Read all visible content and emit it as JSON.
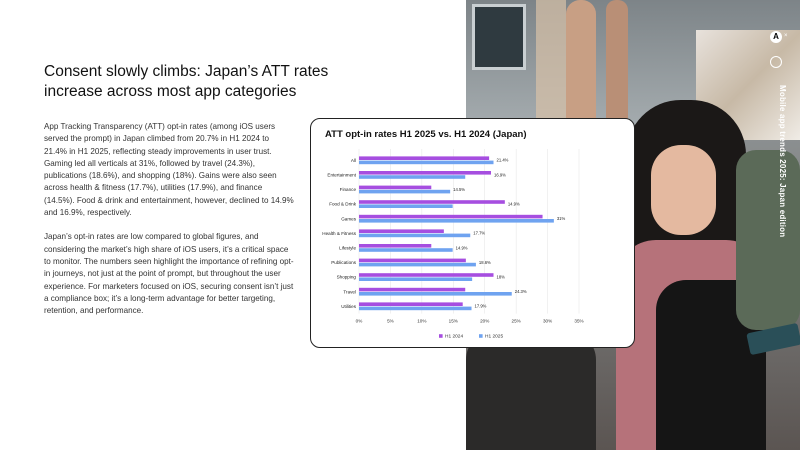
{
  "headline": "Consent slowly climbs: Japan’s ATT rates increase across most app categories",
  "paragraphs": [
    "App Tracking Transparency (ATT) opt-in rates (among iOS users served the prompt) in Japan climbed from 20.7% in H1 2024 to 21.4% in H1 2025, reflecting steady improvements in user trust. Gaming led all verticals at 31%, followed by travel (24.3%), publications (18.6%), and shopping (18%). Gains were also seen across health & fitness (17.7%), utilities (17.9%), and finance (14.5%). Food & drink and entertainment, however, declined to 14.9% and 16.9%, respectively.",
    "Japan’s opt-in rates are low compared to global figures, and considering the market’s high share of iOS users, it’s a critical space to monitor. The numbers seen highlight the importance of refining opt-in journeys, not just at the point of prompt, but throughout the user experience. For marketers focused on iOS, securing consent isn’t just a compliance box; it’s a long-term advantage for better targeting, retention, and performance."
  ],
  "side_title": "Mobile app trends 2025: Japan edition",
  "logo_letter": "A",
  "logo_separator": "×",
  "colors": {
    "h1_2024": "#a64ee0",
    "h1_2025": "#6fa3f0"
  },
  "chart_data": {
    "type": "bar",
    "orientation": "horizontal",
    "title": "ATT opt-in rates H1 2025 vs. H1 2024 (Japan)",
    "categories": [
      "All",
      "Entertainment",
      "Finance",
      "Food & Drink",
      "Games",
      "Health & Fitness",
      "Lifestyle",
      "Publications",
      "Shopping",
      "Travel",
      "Utilities"
    ],
    "series": [
      {
        "name": "H1 2024",
        "values": [
          20.7,
          21.0,
          11.5,
          23.2,
          29.2,
          13.5,
          11.5,
          17.0,
          21.4,
          16.9,
          16.5
        ]
      },
      {
        "name": "H1 2025",
        "values": [
          21.4,
          16.9,
          14.5,
          14.9,
          31.0,
          17.7,
          14.9,
          18.6,
          18.0,
          24.3,
          17.9
        ]
      }
    ],
    "data_labels": [
      "21.4%",
      "16.9%",
      "14.5%",
      "14.9%",
      "31%",
      "17.7%",
      "14.9%",
      "18.6%",
      "18%",
      "24.3%",
      "17.9%"
    ],
    "xlim": [
      0,
      35
    ],
    "x_ticks": [
      "0%",
      "5%",
      "10%",
      "15%",
      "20%",
      "25%",
      "30%",
      "35%"
    ],
    "grid": true,
    "legend_position": "bottom"
  }
}
